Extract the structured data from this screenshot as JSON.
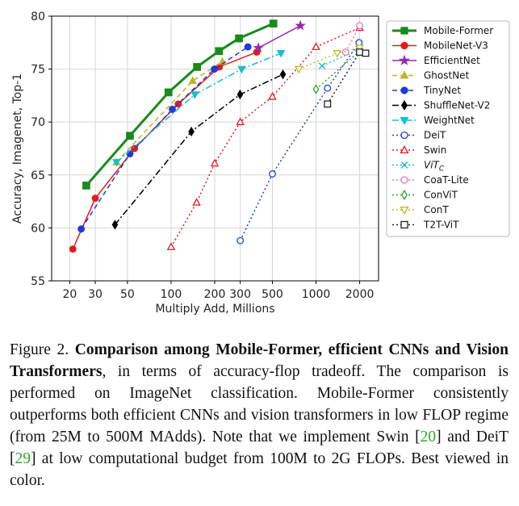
{
  "chart_data": {
    "type": "line",
    "xscale": "log",
    "xlabel": "Multiply Add, Millions",
    "ylabel": "Accuracy, Imagenet, Top-1",
    "xlim": [
      15,
      2700
    ],
    "ylim": [
      55,
      80
    ],
    "xticks": [
      20,
      30,
      50,
      100,
      200,
      300,
      500,
      1000,
      2000
    ],
    "xtick_labels": [
      "20",
      "30",
      "50",
      "100",
      "200",
      "300",
      "500",
      "1000",
      "2000"
    ],
    "yticks": [
      55,
      60,
      65,
      70,
      75,
      80
    ],
    "ytick_labels": [
      "55",
      "60",
      "65",
      "70",
      "75",
      "80"
    ],
    "grid": true,
    "legend_position": "right",
    "series": [
      {
        "name": "Mobile-Former",
        "color": "#1a8a1a",
        "dash": "solid",
        "marker": "square",
        "filled": true,
        "width": 3,
        "x": [
          26,
          52,
          96,
          151,
          214,
          294,
          508
        ],
        "y": [
          64.0,
          68.7,
          72.8,
          75.2,
          76.7,
          77.9,
          79.3
        ]
      },
      {
        "name": "MobileNet-V3",
        "color": "#e31a1c",
        "dash": "solid",
        "marker": "circle",
        "filled": true,
        "width": 1.5,
        "x": [
          21,
          30,
          56,
          112,
          215,
          390
        ],
        "y": [
          58.0,
          62.8,
          67.5,
          71.7,
          75.2,
          76.6
        ]
      },
      {
        "name": "EfficientNet",
        "color": "#9b27b0",
        "dash": "solid",
        "marker": "star",
        "filled": true,
        "width": 1.5,
        "x": [
          400,
          780
        ],
        "y": [
          77.0,
          79.1
        ]
      },
      {
        "name": "GhostNet",
        "color": "#bfb52a",
        "dash": "dashed",
        "marker": "triangle",
        "filled": true,
        "width": 1.5,
        "x": [
          42,
          141,
          226
        ],
        "y": [
          66.2,
          73.9,
          75.7
        ]
      },
      {
        "name": "TinyNet",
        "color": "#1f3bd6",
        "dash": "dashed",
        "marker": "circle",
        "filled": true,
        "width": 1.5,
        "x": [
          24,
          52,
          102,
          199,
          339
        ],
        "y": [
          59.9,
          67.0,
          71.2,
          75.0,
          77.1
        ]
      },
      {
        "name": "ShuffleNet-V2",
        "color": "#000000",
        "dash": "dashdot",
        "marker": "diamond",
        "filled": true,
        "width": 1.5,
        "x": [
          41,
          138,
          299,
          591
        ],
        "y": [
          60.3,
          69.1,
          72.6,
          74.5
        ]
      },
      {
        "name": "WeightNet",
        "color": "#17becf",
        "dash": "dashdot",
        "marker": "triangle_down",
        "filled": true,
        "width": 1.5,
        "x": [
          42,
          146,
          307,
          573
        ],
        "y": [
          66.2,
          72.6,
          75.0,
          76.5
        ]
      },
      {
        "name": "DeiT",
        "color": "#1f3bd6",
        "dash": "dotted",
        "marker": "circle",
        "filled": false,
        "width": 1.5,
        "x": [
          300,
          500,
          1200,
          1980
        ],
        "y": [
          58.8,
          65.1,
          73.2,
          77.5
        ]
      },
      {
        "name": "Swin",
        "color": "#e31a1c",
        "dash": "dotted",
        "marker": "triangle",
        "filled": false,
        "width": 1.5,
        "x": [
          100,
          150,
          200,
          300,
          500,
          1000,
          2000
        ],
        "y": [
          58.2,
          62.4,
          66.1,
          70.0,
          72.4,
          77.1,
          78.9
        ]
      },
      {
        "name": "ViT_C",
        "color": "#17becf",
        "dash": "dotted",
        "marker": "x",
        "filled": false,
        "width": 1.5,
        "x": [
          1100,
          2000
        ],
        "y": [
          75.3,
          76.9
        ]
      },
      {
        "name": "CoaT-Lite",
        "color": "#e377c2",
        "dash": "dotted",
        "marker": "circle",
        "filled": false,
        "width": 1.5,
        "x": [
          1600,
          2000
        ],
        "y": [
          76.6,
          79.1
        ]
      },
      {
        "name": "ConViT",
        "color": "#2ca02c",
        "dash": "dotted",
        "marker": "diamond",
        "filled": false,
        "width": 1.5,
        "x": [
          1000,
          2000
        ],
        "y": [
          73.1,
          76.7
        ]
      },
      {
        "name": "ConT",
        "color": "#bcbd22",
        "dash": "dotted",
        "marker": "triangle_down",
        "filled": false,
        "width": 1.5,
        "x": [
          760,
          1400,
          2000
        ],
        "y": [
          75.0,
          76.5,
          77.0
        ]
      },
      {
        "name": "T2T-ViT",
        "color": "#222222",
        "dash": "dotted",
        "marker": "square",
        "filled": false,
        "width": 1.5,
        "x": [
          1200,
          2000,
          2200
        ],
        "y": [
          71.7,
          76.6,
          76.5
        ]
      }
    ]
  },
  "legend": [
    {
      "main": "Mobile-Former",
      "sub": ""
    },
    {
      "main": "MobileNet-V3",
      "sub": ""
    },
    {
      "main": "EfficientNet",
      "sub": ""
    },
    {
      "main": "GhostNet",
      "sub": ""
    },
    {
      "main": "TinyNet",
      "sub": ""
    },
    {
      "main": "ShuffleNet-V2",
      "sub": ""
    },
    {
      "main": "WeightNet",
      "sub": ""
    },
    {
      "main": "DeiT",
      "sub": ""
    },
    {
      "main": "Swin",
      "sub": ""
    },
    {
      "main": "ViT",
      "sub": "C"
    },
    {
      "main": "CoaT-Lite",
      "sub": ""
    },
    {
      "main": "ConViT",
      "sub": ""
    },
    {
      "main": "ConT",
      "sub": ""
    },
    {
      "main": "T2T-ViT",
      "sub": ""
    }
  ],
  "caption": {
    "label": "Figure 2.",
    "bold": "Comparison among Mobile-Former, efficient CNNs and Vision Transformers",
    "text1": ", in terms of accuracy-flop tradeoff. The comparison is performed on ImageNet classification. Mobile-Former consistently outperforms both efficient CNNs and vision transformers in low FLOP regime (from 25M to 500M MAdds). Note that we implement Swin [",
    "ref1": "20",
    "text2": "] and DeiT [",
    "ref2": "29",
    "text3": "] at low computational budget from 100M to 2G FLOPs. Best viewed in color."
  }
}
